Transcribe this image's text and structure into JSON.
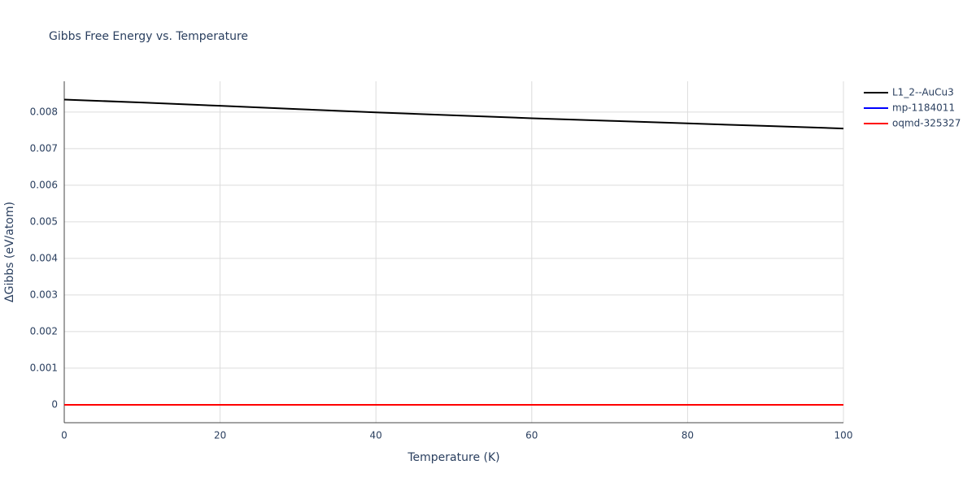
{
  "chart_data": {
    "type": "line",
    "title": "Gibbs Free Energy vs. Temperature",
    "x_label": "Temperature (K)",
    "y_label": "ΔGibbs (eV/atom)",
    "x": [
      0,
      10,
      20,
      30,
      40,
      50,
      60,
      70,
      80,
      90,
      100
    ],
    "series": [
      {
        "name": "L1_2--AuCu3",
        "color": "#000000",
        "values": [
          0.00834,
          0.00826,
          0.00817,
          0.00808,
          0.00799,
          0.00791,
          0.00783,
          0.00776,
          0.00769,
          0.00762,
          0.00755
        ]
      },
      {
        "name": "mp-1184011",
        "color": "#0000ff",
        "values": [
          0,
          0,
          0,
          0,
          0,
          0,
          0,
          0,
          0,
          0,
          0
        ]
      },
      {
        "name": "oqmd-325327",
        "color": "#ff0000",
        "values": [
          0,
          0,
          0,
          0,
          0,
          0,
          0,
          0,
          0,
          0,
          0
        ]
      }
    ],
    "xlim": [
      0,
      100
    ],
    "xticks": [
      0,
      20,
      40,
      60,
      80,
      100
    ],
    "ylim": [
      -0.00049,
      0.00884
    ],
    "yticks": [
      0,
      0.001,
      0.002,
      0.003,
      0.004,
      0.005,
      0.006,
      0.007,
      0.008
    ],
    "grid": true,
    "legend": "right"
  }
}
